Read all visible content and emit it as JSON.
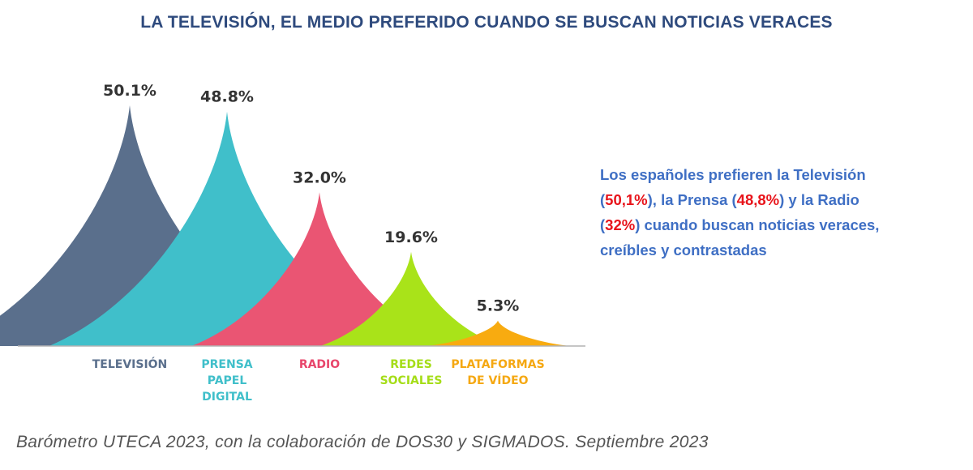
{
  "title": "LA TELEVISIÓN, EL MEDIO PREFERIDO CUANDO SE BUSCAN NOTICIAS VERACES",
  "chart_data": {
    "type": "area",
    "categories": [
      [
        "TELEVISIÓN"
      ],
      [
        "PRENSA",
        "PAPEL",
        "DIGITAL"
      ],
      [
        "RADIO"
      ],
      [
        "REDES",
        "SOCIALES"
      ],
      [
        "PLATAFORMAS",
        "DE VÍDEO"
      ]
    ],
    "values": [
      50.1,
      48.8,
      32.0,
      19.6,
      5.3
    ],
    "value_labels": [
      "50.1%",
      "48.8%",
      "32.0%",
      "19.6%",
      "5.3%"
    ],
    "colors": [
      "#5a6f8c",
      "#40bfca",
      "#ea5573",
      "#a9e319",
      "#f8ab10"
    ],
    "label_colors": [
      "#5a6f8c",
      "#40bfca",
      "#e8456a",
      "#a5dd18",
      "#f5a812"
    ],
    "ylim": [
      0,
      50.1
    ]
  },
  "note": {
    "line1": "Los españoles prefieren la Televisión",
    "line2_open": "(",
    "line2_val1": "50,1%",
    "line2_mid": "), la Prensa  (",
    "line2_val2": "48,8%",
    "line2_end": ") y la Radio",
    "line3_open": "(",
    "line3_val": "32%",
    "line3_end": ") cuando buscan noticias veraces,",
    "line4": "creíbles y contrastadas"
  },
  "source": "Barómetro UTECA 2023, con la colaboración de DOS30 y SIGMADOS. Septiembre 2023"
}
